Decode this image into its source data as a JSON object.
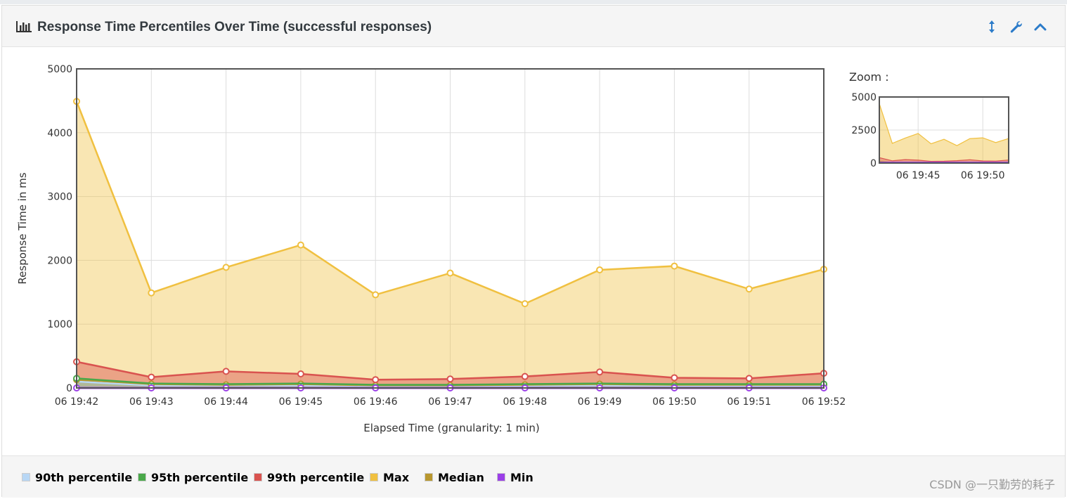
{
  "panel": {
    "title": "Response Time Percentiles Over Time (successful responses)",
    "icons": [
      "bar-chart-icon",
      "vertical-resize-icon",
      "wrench-icon",
      "chevron-up-icon"
    ]
  },
  "zoom": {
    "label": "Zoom :",
    "yticks": [
      "0",
      "2500",
      "5000"
    ],
    "xticks": [
      "06 19:45",
      "06 19:50"
    ]
  },
  "watermark": "CSDN @一只勤劳的耗子",
  "legend": [
    {
      "label": "90th percentile",
      "color": "#b8d7f5"
    },
    {
      "label": "95th percentile",
      "color": "#4aa84a"
    },
    {
      "label": "99th percentile",
      "color": "#d9534f"
    },
    {
      "label": "Max",
      "color": "#f0c040"
    },
    {
      "label": "Median",
      "color": "#b8972e"
    },
    {
      "label": "Min",
      "color": "#9b3fe8"
    }
  ],
  "chart_data": {
    "type": "area",
    "xlabel": "Elapsed Time (granularity: 1 min)",
    "ylabel": "Response Time in ms",
    "ylim": [
      0,
      5000
    ],
    "yticks": [
      "0",
      "1000",
      "2000",
      "3000",
      "4000",
      "5000"
    ],
    "categories": [
      "06 19:42",
      "06 19:43",
      "06 19:44",
      "06 19:45",
      "06 19:46",
      "06 19:47",
      "06 19:48",
      "06 19:49",
      "06 19:50",
      "06 19:51",
      "06 19:52"
    ],
    "grid": true,
    "legend_position": "bottom",
    "series": [
      {
        "name": "Max",
        "color": "#f0c040",
        "values": [
          4490,
          1490,
          1890,
          2240,
          1460,
          1800,
          1320,
          1850,
          1910,
          1550,
          1860
        ]
      },
      {
        "name": "99th percentile",
        "color": "#d9534f",
        "values": [
          410,
          170,
          260,
          220,
          130,
          140,
          180,
          250,
          160,
          150,
          230
        ]
      },
      {
        "name": "95th percentile",
        "color": "#4aa84a",
        "values": [
          150,
          70,
          60,
          70,
          50,
          50,
          60,
          70,
          60,
          60,
          60
        ]
      },
      {
        "name": "Median",
        "color": "#b8972e",
        "values": [
          130,
          60,
          50,
          60,
          40,
          40,
          50,
          60,
          50,
          50,
          50
        ]
      },
      {
        "name": "90th percentile",
        "color": "#b8d7f5",
        "values": [
          100,
          40,
          40,
          40,
          30,
          30,
          35,
          40,
          35,
          35,
          35
        ]
      },
      {
        "name": "Min",
        "color": "#9b3fe8",
        "values": [
          0,
          0,
          0,
          0,
          0,
          0,
          0,
          0,
          0,
          0,
          0
        ]
      }
    ]
  }
}
